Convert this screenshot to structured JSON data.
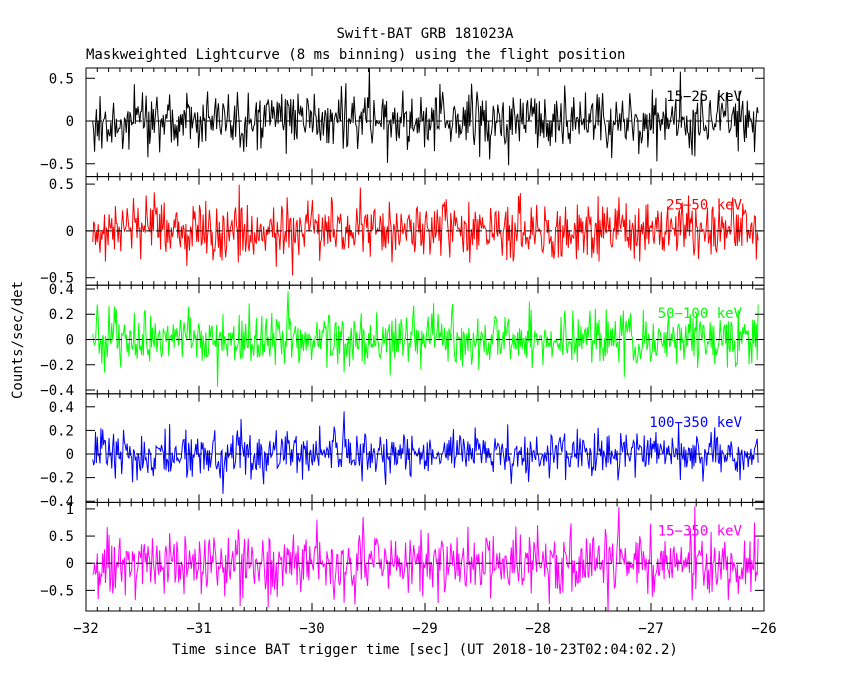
{
  "title": "Swift-BAT GRB 181023A",
  "subtitle": "Maskweighted Lightcurve (8 ms binning) using the flight position",
  "ylabel": "Counts/sec/det",
  "xlabel": "Time since BAT trigger time [sec] (UT 2018-10-23T02:04:02.2)",
  "chart_data": {
    "type": "line",
    "x_range": [
      -32,
      -26
    ],
    "x_ticks": [
      -32,
      -31,
      -30,
      -29,
      -28,
      -27,
      -26
    ],
    "x_tick_labels": [
      "−32",
      "−31",
      "−30",
      "−29",
      "−28",
      "−27",
      "−26"
    ],
    "bin_width_s": 0.008,
    "panels": [
      {
        "band": "15−25 keV",
        "color": "#000000",
        "ylim": [
          -0.65,
          0.62
        ],
        "y_ticks": [
          -0.5,
          0,
          0.5
        ],
        "y_tick_labels": [
          "−0.5",
          "0",
          "0.5"
        ],
        "noise_sigma": 0.17
      },
      {
        "band": "25−50 keV",
        "color": "#ff0000",
        "ylim": [
          -0.58,
          0.58
        ],
        "y_ticks": [
          -0.5,
          0,
          0.5
        ],
        "y_tick_labels": [
          "−0.5",
          "0",
          "0.5"
        ],
        "noise_sigma": 0.16
      },
      {
        "band": "50−100 keV",
        "color": "#00ff00",
        "ylim": [
          -0.43,
          0.43
        ],
        "y_ticks": [
          -0.4,
          -0.2,
          0,
          0.2,
          0.4
        ],
        "y_tick_labels": [
          "−0.4",
          "−0.2",
          "0",
          "0.2",
          "0.4"
        ],
        "noise_sigma": 0.11
      },
      {
        "band": "100−350 keV",
        "color": "#0000ff",
        "ylim": [
          -0.41,
          0.51
        ],
        "y_ticks": [
          -0.4,
          -0.2,
          0,
          0.2,
          0.4
        ],
        "y_tick_labels": [
          "−0.4",
          "−0.2",
          "0",
          "0.2",
          "0.4"
        ],
        "noise_sigma": 0.1
      },
      {
        "band": "15−350 keV",
        "color": "#ff00ff",
        "ylim": [
          -0.88,
          1.12
        ],
        "y_ticks": [
          -0.5,
          0,
          0.5,
          1
        ],
        "y_tick_labels": [
          "−0.5",
          "0",
          "0.5",
          "1"
        ],
        "noise_sigma": 0.28
      }
    ]
  }
}
